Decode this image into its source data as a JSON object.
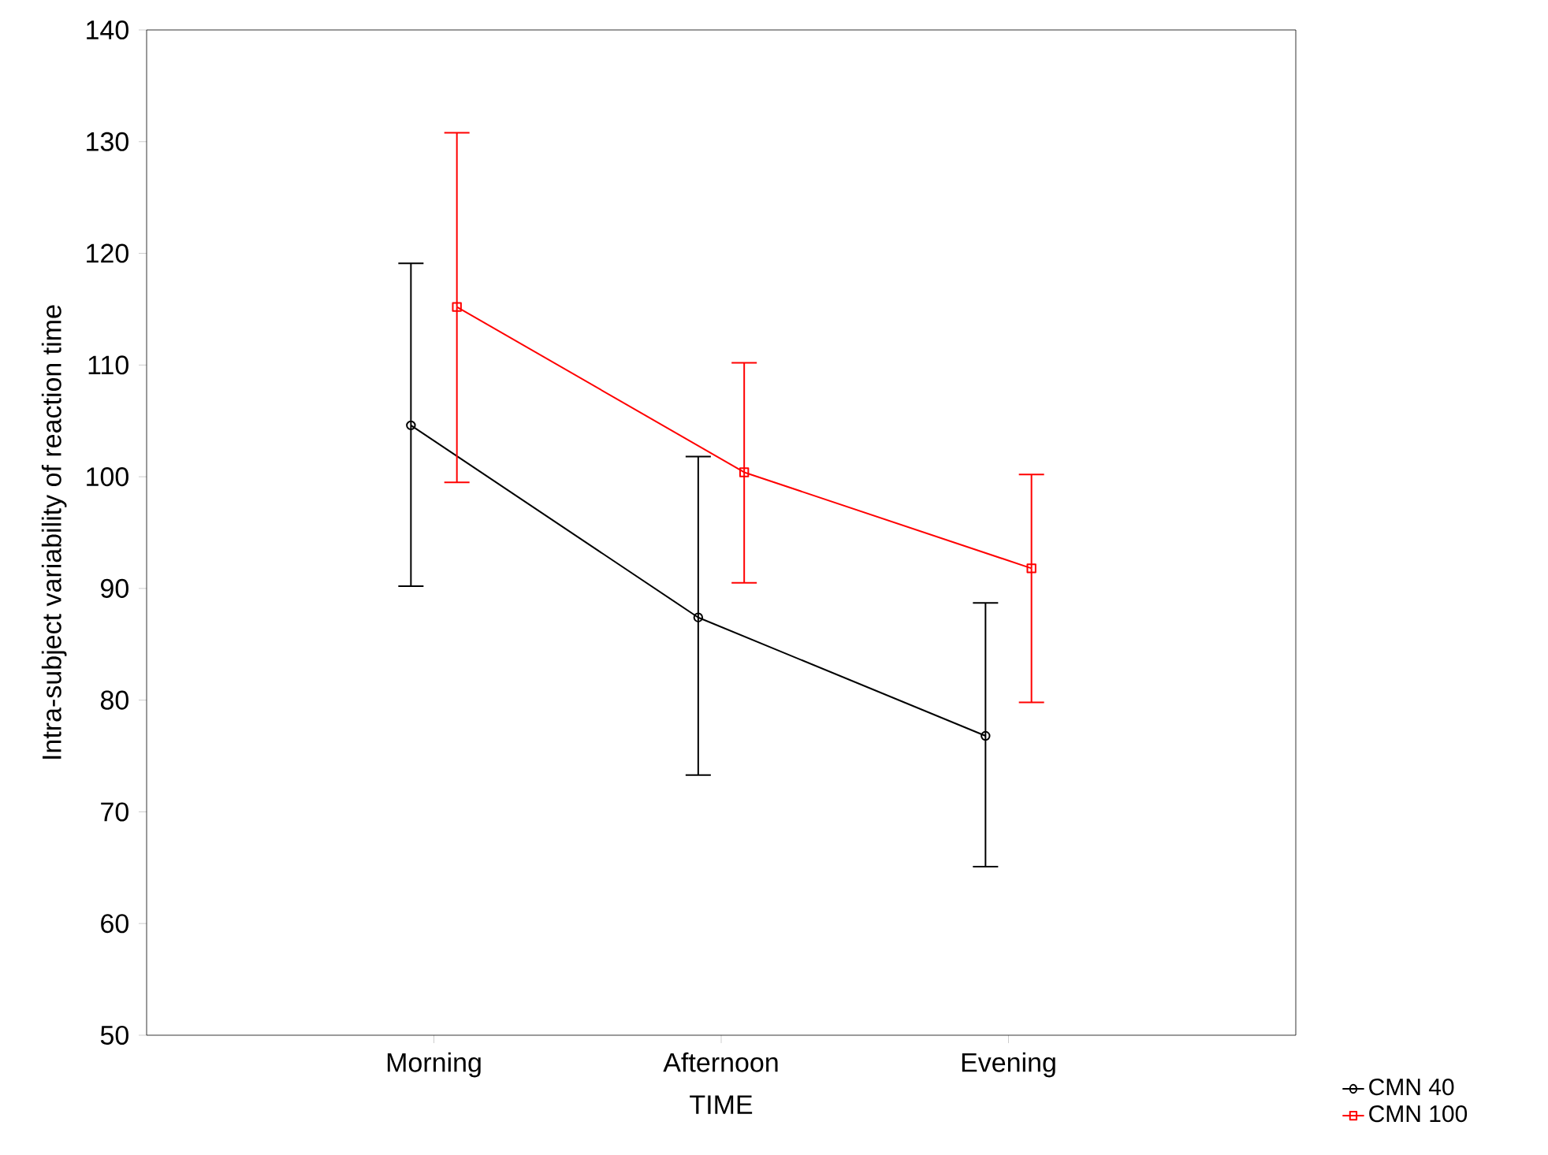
{
  "chart_data": {
    "type": "line",
    "xlabel": "TIME",
    "ylabel": "Intra-subject variability of reaction time",
    "categories": [
      "Morning",
      "Afternoon",
      "Evening"
    ],
    "ylim": [
      50,
      140
    ],
    "yticks": [
      50,
      60,
      70,
      80,
      90,
      100,
      110,
      120,
      130,
      140
    ],
    "grid": false,
    "legend": "bottom right",
    "series": [
      {
        "name": "CMN 40",
        "color": "#000000",
        "marker": "circle",
        "values": [
          104.6,
          87.4,
          76.8
        ],
        "errors": [
          [
            90.2,
            119.1
          ],
          [
            73.3,
            101.8
          ],
          [
            65.1,
            88.7
          ]
        ]
      },
      {
        "name": "CMN 100",
        "color": "#ff0000",
        "marker": "square",
        "values": [
          115.2,
          100.4,
          91.8
        ],
        "errors": [
          [
            99.5,
            130.8
          ],
          [
            90.5,
            110.2
          ],
          [
            79.8,
            100.2
          ]
        ]
      }
    ]
  }
}
